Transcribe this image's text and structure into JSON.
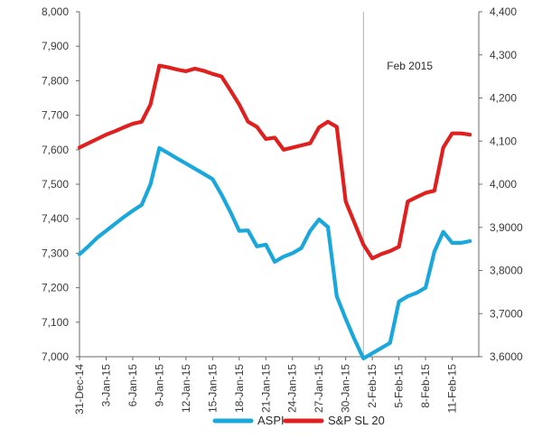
{
  "chart_data": {
    "type": "line",
    "title": "",
    "xlabel": "",
    "ylabel": "",
    "y2label": "",
    "x_tick_labels": [
      "31-Dec-14",
      "3-Jan-15",
      "6-Jan-15",
      "9-Jan-15",
      "12-Jan-15",
      "15-Jan-15",
      "18-Jan-15",
      "21-Jan-15",
      "24-Jan-15",
      "27-Jan-15",
      "30-Jan-15",
      "2-Feb-15",
      "5-Feb-15",
      "8-Feb-15",
      "11-Feb-15"
    ],
    "xlim": [
      "2014-12-31",
      "2015-02-14"
    ],
    "ylim": [
      7000,
      8000
    ],
    "y_ticks": [
      "7,000",
      "7,100",
      "7,200",
      "7,300",
      "7,400",
      "7,500",
      "7,600",
      "7,700",
      "7,800",
      "7,900",
      "8,000"
    ],
    "y2lim": [
      3600,
      4400
    ],
    "y2_ticks": [
      "3,6000",
      "3,7000",
      "3,8000",
      "3,9000",
      "4,000",
      "4,100",
      "4,200",
      "4,300",
      "4,400"
    ],
    "grid": false,
    "legend_position": "bottom",
    "annotation": {
      "text": "Feb 2015",
      "at": "2015-02-01"
    },
    "series": [
      {
        "name": "ASPI",
        "axis": "left",
        "color": "#1aa7dc",
        "x": [
          "2014-12-31",
          "2015-01-01",
          "2015-01-02",
          "2015-01-03",
          "2015-01-04",
          "2015-01-05",
          "2015-01-06",
          "2015-01-07",
          "2015-01-08",
          "2015-01-09",
          "2015-01-10",
          "2015-01-11",
          "2015-01-12",
          "2015-01-13",
          "2015-01-14",
          "2015-01-15",
          "2015-01-16",
          "2015-01-17",
          "2015-01-18",
          "2015-01-19",
          "2015-01-20",
          "2015-01-21",
          "2015-01-22",
          "2015-01-23",
          "2015-01-24",
          "2015-01-25",
          "2015-01-26",
          "2015-01-27",
          "2015-01-28",
          "2015-01-29",
          "2015-01-30",
          "2015-01-31",
          "2015-02-01",
          "2015-02-02",
          "2015-02-03",
          "2015-02-04",
          "2015-02-05",
          "2015-02-06",
          "2015-02-07",
          "2015-02-08",
          "2015-02-09",
          "2015-02-10",
          "2015-02-11",
          "2015-02-12",
          "2015-02-13"
        ],
        "values": [
          7297,
          7320,
          7345,
          7365,
          7385,
          7405,
          7423,
          7440,
          7500,
          7605,
          7590,
          7575,
          7560,
          7545,
          7530,
          7515,
          7470,
          7420,
          7365,
          7366,
          7320,
          7325,
          7275,
          7290,
          7300,
          7315,
          7365,
          7398,
          7376,
          7175,
          7110,
          7050,
          6995,
          7010,
          7025,
          7040,
          7160,
          7175,
          7185,
          7200,
          7305,
          7362,
          7330,
          7330,
          7335
        ]
      },
      {
        "name": "S&P SL 20",
        "axis": "right",
        "color": "#e0201f",
        "x": [
          "2014-12-31",
          "2015-01-01",
          "2015-01-02",
          "2015-01-03",
          "2015-01-04",
          "2015-01-05",
          "2015-01-06",
          "2015-01-07",
          "2015-01-08",
          "2015-01-09",
          "2015-01-10",
          "2015-01-11",
          "2015-01-12",
          "2015-01-13",
          "2015-01-14",
          "2015-01-15",
          "2015-01-16",
          "2015-01-17",
          "2015-01-18",
          "2015-01-19",
          "2015-01-20",
          "2015-01-21",
          "2015-01-22",
          "2015-01-23",
          "2015-01-24",
          "2015-01-25",
          "2015-01-26",
          "2015-01-27",
          "2015-01-28",
          "2015-01-29",
          "2015-01-30",
          "2015-01-31",
          "2015-02-01",
          "2015-02-02",
          "2015-02-03",
          "2015-02-04",
          "2015-02-05",
          "2015-02-06",
          "2015-02-07",
          "2015-02-08",
          "2015-02-09",
          "2015-02-10",
          "2015-02-11",
          "2015-02-12",
          "2015-02-13"
        ],
        "values": [
          4085,
          4095,
          4105,
          4115,
          4123,
          4132,
          4140,
          4145,
          4185,
          4275,
          4271,
          4266,
          4262,
          4268,
          4263,
          4256,
          4250,
          4218,
          4185,
          4145,
          4133,
          4105,
          4108,
          4080,
          4085,
          4090,
          4095,
          4132,
          4145,
          4133,
          3960,
          3910,
          3860,
          3828,
          3838,
          3845,
          3855,
          3960,
          3970,
          3980,
          3985,
          4085,
          4118,
          4118,
          4115
        ]
      }
    ]
  }
}
